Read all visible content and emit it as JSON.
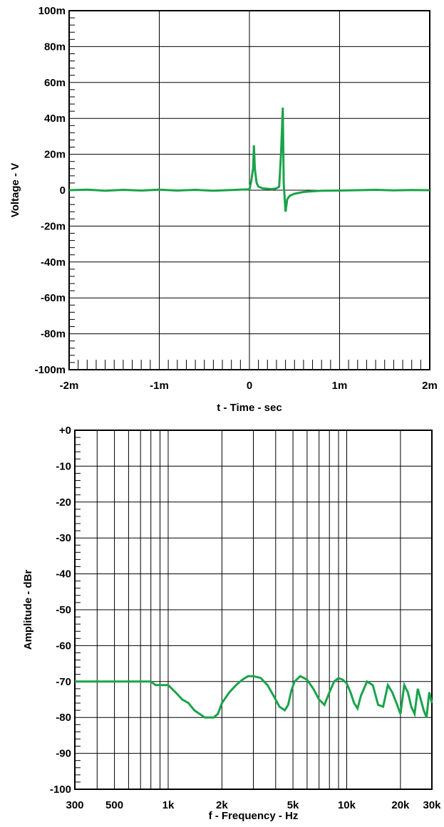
{
  "chart_data": [
    {
      "type": "line",
      "title": "",
      "xlabel": "t - Time - sec",
      "ylabel": "Voltage - V",
      "xlim": [
        -0.002,
        0.002
      ],
      "ylim": [
        -0.1,
        0.1
      ],
      "grid": true,
      "x_ticks": [
        {
          "value": -0.002,
          "label": "-2m"
        },
        {
          "value": -0.001,
          "label": "-1m"
        },
        {
          "value": 0,
          "label": "0"
        },
        {
          "value": 0.001,
          "label": "1m"
        },
        {
          "value": 0.002,
          "label": "2m"
        }
      ],
      "y_ticks": [
        {
          "value": 0.1,
          "label": "100m"
        },
        {
          "value": 0.08,
          "label": "80m"
        },
        {
          "value": 0.06,
          "label": "60m"
        },
        {
          "value": 0.04,
          "label": "40m"
        },
        {
          "value": 0.02,
          "label": "20m"
        },
        {
          "value": 0,
          "label": "0"
        },
        {
          "value": -0.02,
          "label": "-20m"
        },
        {
          "value": -0.04,
          "label": "-40m"
        },
        {
          "value": -0.06,
          "label": "-60m"
        },
        {
          "value": -0.08,
          "label": "-80m"
        },
        {
          "value": -0.1,
          "label": "-100m"
        }
      ],
      "series": [
        {
          "color": "#1aa34a",
          "x": [
            -0.002,
            -0.0018,
            -0.0016,
            -0.0014,
            -0.0012,
            -0.001,
            -0.0008,
            -0.0006,
            -0.0004,
            -0.0002,
            0,
            2e-05,
            4e-05,
            5e-05,
            6e-05,
            8e-05,
            0.0001,
            0.00015,
            0.0002,
            0.00025,
            0.0003,
            0.00033,
            0.00035,
            0.00037,
            0.00038,
            0.0004,
            0.00042,
            0.00045,
            0.0005,
            0.0006,
            0.0007,
            0.0008,
            0.001,
            0.0012,
            0.0014,
            0.0016,
            0.0018,
            0.002
          ],
          "y": [
            0,
            0.0003,
            -0.0003,
            0.0002,
            -0.0002,
            0.0003,
            -0.0002,
            0.0002,
            -0.0003,
            0.0001,
            0.0005,
            0.005,
            0.012,
            0.025,
            0.012,
            0.004,
            0.002,
            0.001,
            0.0008,
            0.0006,
            0.001,
            0.002,
            0.02,
            0.046,
            0.004,
            -0.012,
            -0.005,
            -0.003,
            -0.002,
            -0.001,
            -0.0006,
            -0.0003,
            -0.0002,
            0,
            0.0002,
            -0.0001,
            0.0001,
            0
          ]
        }
      ]
    },
    {
      "type": "line",
      "title": "",
      "xlabel": "f - Frequency - Hz",
      "ylabel": "Amplitude - dBr",
      "xscale": "log",
      "xlim": [
        300,
        30000
      ],
      "ylim": [
        -100,
        0
      ],
      "grid": true,
      "x_ticks": [
        {
          "value": 300,
          "label": "300"
        },
        {
          "value": 500,
          "label": "500"
        },
        {
          "value": 1000,
          "label": "1k"
        },
        {
          "value": 2000,
          "label": "2k"
        },
        {
          "value": 5000,
          "label": "5k"
        },
        {
          "value": 10000,
          "label": "10k"
        },
        {
          "value": 20000,
          "label": "20k"
        },
        {
          "value": 30000,
          "label": "30k"
        }
      ],
      "y_ticks": [
        {
          "value": 0,
          "label": "+0"
        },
        {
          "value": -10,
          "label": "-10"
        },
        {
          "value": -20,
          "label": "-20"
        },
        {
          "value": -30,
          "label": "-30"
        },
        {
          "value": -40,
          "label": "-40"
        },
        {
          "value": -50,
          "label": "-50"
        },
        {
          "value": -60,
          "label": "-60"
        },
        {
          "value": -70,
          "label": "-70"
        },
        {
          "value": -80,
          "label": "-80"
        },
        {
          "value": -90,
          "label": "-90"
        },
        {
          "value": -100,
          "label": "-100"
        }
      ],
      "series": [
        {
          "color": "#1aa34a",
          "x": [
            300,
            500,
            800,
            850,
            1000,
            1100,
            1200,
            1300,
            1400,
            1500,
            1600,
            1700,
            1800,
            1900,
            2000,
            2200,
            2400,
            2600,
            2800,
            3000,
            3300,
            3600,
            3900,
            4200,
            4500,
            4700,
            4900,
            5100,
            5500,
            6000,
            6500,
            7000,
            7500,
            8000,
            8500,
            9000,
            9500,
            10000,
            10500,
            11000,
            11500,
            12000,
            13000,
            14000,
            15000,
            16000,
            17000,
            18000,
            19000,
            20000,
            21000,
            22000,
            23000,
            24000,
            25000,
            26000,
            27000,
            28000,
            29000,
            30000
          ],
          "y": [
            -70,
            -70,
            -70,
            -71,
            -71,
            -73,
            -75,
            -76,
            -78,
            -79,
            -80,
            -80,
            -80,
            -79,
            -76,
            -73,
            -71,
            -69.5,
            -68.5,
            -68.5,
            -69,
            -71,
            -74,
            -77,
            -78,
            -76.5,
            -72.5,
            -70,
            -68.5,
            -69.5,
            -72,
            -75,
            -76.5,
            -73,
            -70,
            -69,
            -69.5,
            -70.5,
            -73,
            -76,
            -77.5,
            -74,
            -70,
            -71,
            -76.5,
            -77,
            -71,
            -73,
            -76,
            -79,
            -71,
            -73,
            -77,
            -79,
            -72,
            -75,
            -78,
            -80,
            -73,
            -76
          ]
        }
      ]
    }
  ]
}
